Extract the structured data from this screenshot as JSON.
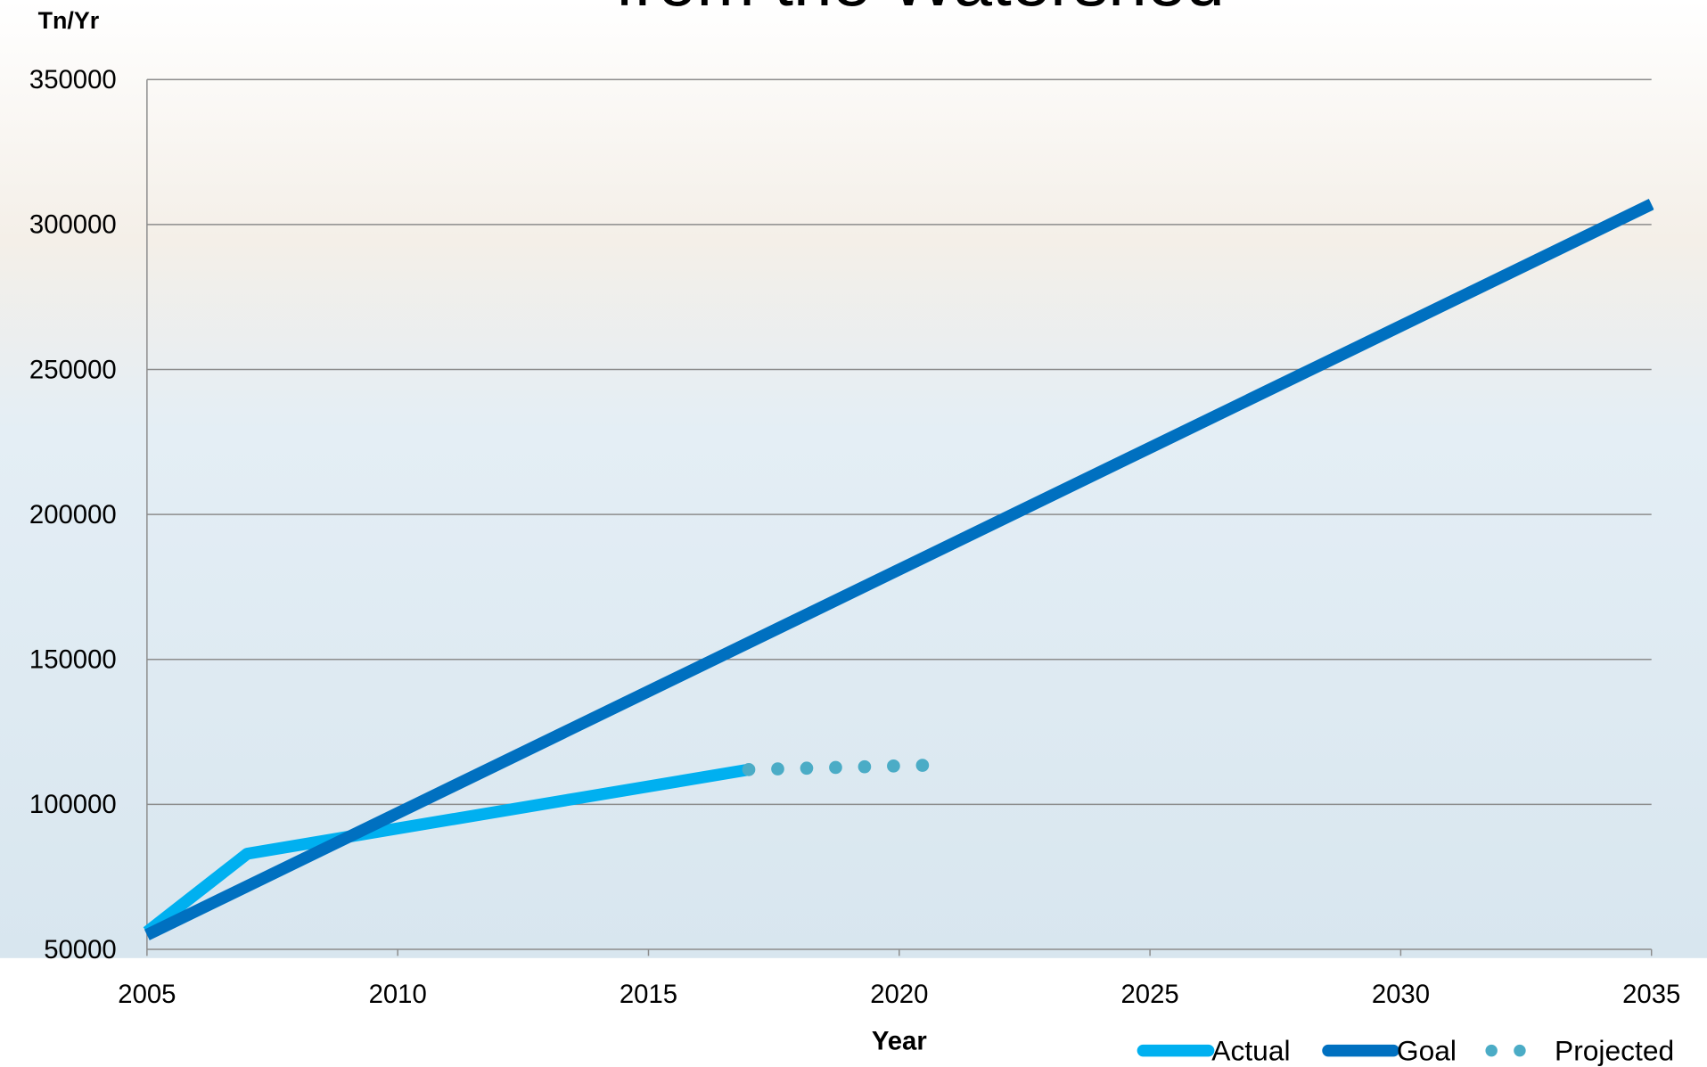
{
  "chart_data": {
    "type": "line",
    "title": "from the Watershed",
    "y_label": "Tn/Yr",
    "x_label": "Year",
    "xlim": [
      2005,
      2035
    ],
    "xticks": [
      2005,
      2010,
      2015,
      2020,
      2025,
      2030,
      2035
    ],
    "ylim": [
      50000,
      350000
    ],
    "yticks": [
      50000,
      100000,
      150000,
      200000,
      250000,
      300000,
      350000
    ],
    "grid": true,
    "legend": "bottom-right",
    "series": [
      {
        "name": "Actual",
        "color": "#00b0f0",
        "style": "solid",
        "x": [
          2005,
          2007,
          2017
        ],
        "values": [
          56000,
          83000,
          112000
        ]
      },
      {
        "name": "Goal",
        "color": "#0070c0",
        "style": "solid",
        "x": [
          2005,
          2035
        ],
        "values": [
          55000,
          307000
        ]
      },
      {
        "name": "Projected",
        "color": "#4bacc6",
        "style": "dotted",
        "x": [
          2017,
          2020.5
        ],
        "values": [
          112000,
          113500
        ]
      }
    ]
  }
}
